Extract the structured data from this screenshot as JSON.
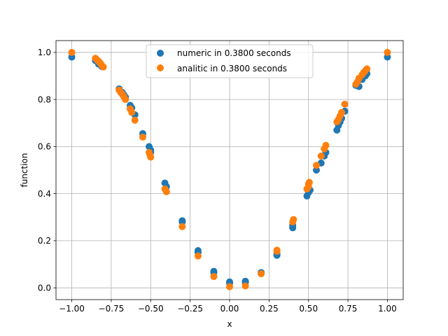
{
  "chart_data": {
    "type": "scatter",
    "title": "",
    "xlabel": "x",
    "ylabel": "function",
    "xlim": [
      -1.1,
      1.1
    ],
    "ylim": [
      -0.05,
      1.05
    ],
    "grid": true,
    "legend_position": "top-center",
    "x_ticks": [
      -1.0,
      -0.75,
      -0.5,
      -0.25,
      0.0,
      0.25,
      0.5,
      0.75,
      1.0
    ],
    "x_tick_labels": [
      "−1.00",
      "−0.75",
      "−0.50",
      "−0.25",
      "0.00",
      "0.25",
      "0.50",
      "0.75",
      "1.00"
    ],
    "y_ticks": [
      0.0,
      0.2,
      0.4,
      0.6,
      0.8,
      1.0
    ],
    "y_tick_labels": [
      "0.0",
      "0.2",
      "0.4",
      "0.6",
      "0.8",
      "1.0"
    ],
    "series": [
      {
        "name": "numeric in 0.3800 seconds",
        "color": "#1f77b4",
        "points": [
          [
            -1.0,
            0.98
          ],
          [
            -0.85,
            0.965
          ],
          [
            -0.83,
            0.95
          ],
          [
            -0.81,
            0.94
          ],
          [
            -0.7,
            0.845
          ],
          [
            -0.68,
            0.83
          ],
          [
            -0.67,
            0.82
          ],
          [
            -0.66,
            0.81
          ],
          [
            -0.63,
            0.775
          ],
          [
            -0.62,
            0.765
          ],
          [
            -0.6,
            0.735
          ],
          [
            -0.55,
            0.655
          ],
          [
            -0.51,
            0.6
          ],
          [
            -0.5,
            0.585
          ],
          [
            -0.5,
            0.575
          ],
          [
            -0.41,
            0.445
          ],
          [
            -0.4,
            0.43
          ],
          [
            -0.3,
            0.285
          ],
          [
            -0.3,
            0.28
          ],
          [
            -0.2,
            0.158
          ],
          [
            -0.2,
            0.15
          ],
          [
            -0.1,
            0.07
          ],
          [
            -0.1,
            0.065
          ],
          [
            0.0,
            0.025
          ],
          [
            0.0,
            0.02
          ],
          [
            0.1,
            0.028
          ],
          [
            0.1,
            0.022
          ],
          [
            0.2,
            0.065
          ],
          [
            0.2,
            0.06
          ],
          [
            0.3,
            0.145
          ],
          [
            0.3,
            0.138
          ],
          [
            0.4,
            0.265
          ],
          [
            0.4,
            0.255
          ],
          [
            0.49,
            0.39
          ],
          [
            0.5,
            0.405
          ],
          [
            0.51,
            0.415
          ],
          [
            0.55,
            0.5
          ],
          [
            0.58,
            0.53
          ],
          [
            0.6,
            0.56
          ],
          [
            0.61,
            0.575
          ],
          [
            0.68,
            0.67
          ],
          [
            0.69,
            0.69
          ],
          [
            0.7,
            0.705
          ],
          [
            0.71,
            0.72
          ],
          [
            0.73,
            0.75
          ],
          [
            0.8,
            0.86
          ],
          [
            0.82,
            0.855
          ],
          [
            0.84,
            0.885
          ],
          [
            0.86,
            0.9
          ],
          [
            0.87,
            0.91
          ],
          [
            1.0,
            0.98
          ]
        ]
      },
      {
        "name": "analitic in 0.3800 seconds",
        "color": "#ff7f0e",
        "points": [
          [
            -1.0,
            1.0
          ],
          [
            -0.85,
            0.975
          ],
          [
            -0.84,
            0.968
          ],
          [
            -0.83,
            0.962
          ],
          [
            -0.82,
            0.955
          ],
          [
            -0.81,
            0.945
          ],
          [
            -0.8,
            0.938
          ],
          [
            -0.7,
            0.84
          ],
          [
            -0.69,
            0.83
          ],
          [
            -0.68,
            0.822
          ],
          [
            -0.67,
            0.812
          ],
          [
            -0.66,
            0.8
          ],
          [
            -0.63,
            0.76
          ],
          [
            -0.62,
            0.745
          ],
          [
            -0.6,
            0.712
          ],
          [
            -0.55,
            0.64
          ],
          [
            -0.51,
            0.575
          ],
          [
            -0.505,
            0.565
          ],
          [
            -0.5,
            0.555
          ],
          [
            -0.41,
            0.42
          ],
          [
            -0.4,
            0.408
          ],
          [
            -0.3,
            0.26
          ],
          [
            -0.2,
            0.135
          ],
          [
            -0.1,
            0.048
          ],
          [
            0.0,
            0.005
          ],
          [
            0.1,
            0.008
          ],
          [
            0.2,
            0.06
          ],
          [
            0.3,
            0.16
          ],
          [
            0.3,
            0.155
          ],
          [
            0.4,
            0.28
          ],
          [
            0.405,
            0.29
          ],
          [
            0.49,
            0.42
          ],
          [
            0.5,
            0.43
          ],
          [
            0.5,
            0.44
          ],
          [
            0.505,
            0.448
          ],
          [
            0.55,
            0.52
          ],
          [
            0.58,
            0.56
          ],
          [
            0.6,
            0.59
          ],
          [
            0.61,
            0.605
          ],
          [
            0.68,
            0.705
          ],
          [
            0.69,
            0.715
          ],
          [
            0.7,
            0.73
          ],
          [
            0.71,
            0.745
          ],
          [
            0.73,
            0.78
          ],
          [
            0.8,
            0.865
          ],
          [
            0.81,
            0.875
          ],
          [
            0.82,
            0.89
          ],
          [
            0.84,
            0.905
          ],
          [
            0.85,
            0.915
          ],
          [
            0.86,
            0.922
          ],
          [
            0.87,
            0.93
          ],
          [
            1.0,
            1.0
          ]
        ]
      }
    ]
  }
}
